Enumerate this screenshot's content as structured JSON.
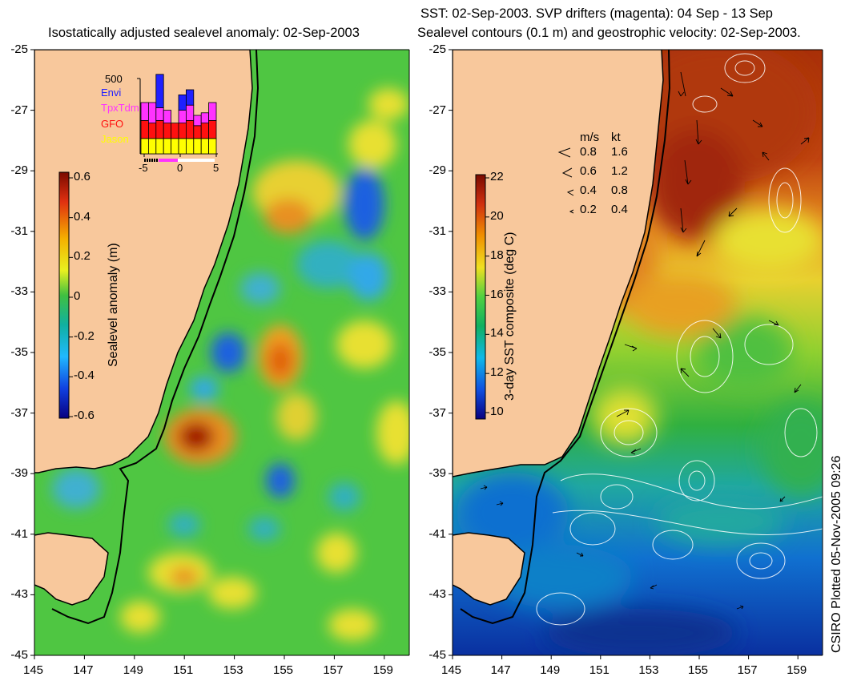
{
  "left_panel": {
    "title": "Isostatically adjusted sealevel anomaly: 02-Sep-2003",
    "colorbar_label": "Sealevel anomaly (m)",
    "colorbar_ticks": [
      "0.6",
      "0.4",
      "0.2",
      "0",
      "-0.2",
      "-0.4",
      "-0.6"
    ],
    "y_ticks": [
      "-25",
      "-27",
      "-29",
      "-31",
      "-33",
      "-35",
      "-37",
      "-39",
      "-41",
      "-43",
      "-45"
    ],
    "x_ticks": [
      "145",
      "147",
      "149",
      "151",
      "153",
      "155",
      "157",
      "159"
    ],
    "inset": {
      "y_label": "500",
      "legend": [
        {
          "label": "Envi",
          "color": "#2020ff"
        },
        {
          "label": "TpxTdm",
          "color": "#ff33ff"
        },
        {
          "label": "GFO",
          "color": "#ff1010"
        },
        {
          "label": "Jason",
          "color": "#ffff00"
        }
      ],
      "x_ticks": [
        "-5",
        "0",
        "5"
      ],
      "bars": [
        {
          "jason": 0.12,
          "gfo": 0.14,
          "tpx": 0.14,
          "envi": 0.0
        },
        {
          "jason": 0.12,
          "gfo": 0.12,
          "tpx": 0.16,
          "envi": 0.0
        },
        {
          "jason": 0.12,
          "gfo": 0.14,
          "tpx": 0.1,
          "envi": 0.26
        },
        {
          "jason": 0.12,
          "gfo": 0.12,
          "tpx": 0.1,
          "envi": 0.0
        },
        {
          "jason": 0.12,
          "gfo": 0.12,
          "tpx": 0.0,
          "envi": 0.0
        },
        {
          "jason": 0.12,
          "gfo": 0.12,
          "tpx": 0.1,
          "envi": 0.12
        },
        {
          "jason": 0.12,
          "gfo": 0.14,
          "tpx": 0.12,
          "envi": 0.12
        },
        {
          "jason": 0.12,
          "gfo": 0.1,
          "tpx": 0.08,
          "envi": 0.0
        },
        {
          "jason": 0.12,
          "gfo": 0.12,
          "tpx": 0.08,
          "envi": 0.0
        },
        {
          "jason": 0.12,
          "gfo": 0.14,
          "tpx": 0.14,
          "envi": 0.0
        }
      ]
    }
  },
  "right_panel": {
    "title_line1": "SST: 02-Sep-2003. SVP drifters (magenta): 04 Sep - 13 Sep",
    "title_line2": "Sealevel contours (0.1 m) and geostrophic velocity: 02-Sep-2003.",
    "colorbar_label": "3-day SST composite (deg C)",
    "colorbar_ticks": [
      "22",
      "20",
      "18",
      "16",
      "14",
      "12",
      "10"
    ],
    "y_ticks": [
      "-25",
      "-27",
      "-29",
      "-31",
      "-33",
      "-35",
      "-37",
      "-39",
      "-41",
      "-43",
      "-45"
    ],
    "x_ticks": [
      "145",
      "147",
      "149",
      "151",
      "153",
      "155",
      "157",
      "159"
    ],
    "speed_legend": {
      "header_ms": "m/s",
      "header_kt": "kt",
      "rows": [
        {
          "ms": "0.8",
          "kt": "1.6"
        },
        {
          "ms": "0.6",
          "kt": "1.2"
        },
        {
          "ms": "0.4",
          "kt": "0.8"
        },
        {
          "ms": "0.2",
          "kt": "0.4"
        }
      ]
    }
  },
  "credit": "CSIRO Plotted 05-Nov-2005 09:26",
  "colors": {
    "land": "#f8c89c",
    "sla_base": "#4fc642",
    "sst_warm": "#a8300a",
    "sst_cold": "#0a40b0"
  }
}
